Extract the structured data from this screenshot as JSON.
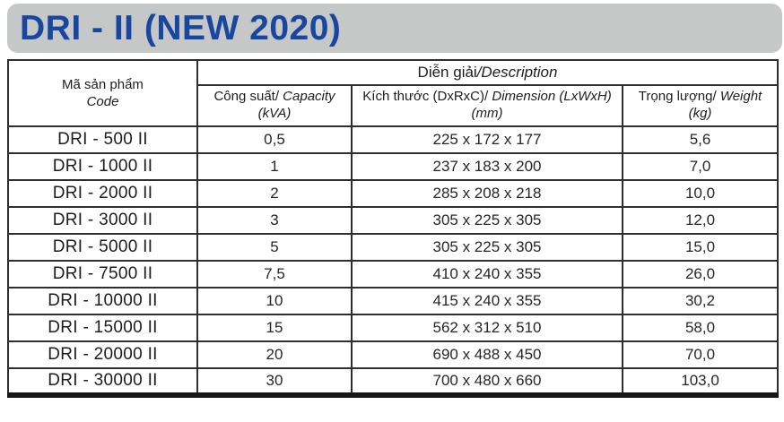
{
  "title": "DRI - II (NEW 2020)",
  "colors": {
    "title_blue": "#17479e",
    "banner_gray": "#c6c7c7",
    "border_dark": "#2e2e2e"
  },
  "table": {
    "header": {
      "code_vi": "Mã sản phẩm",
      "code_en": "Code",
      "description_vi": "Diễn giải",
      "description_en": "/Description",
      "capacity_vi": "Công suất/",
      "capacity_en": "Capacity",
      "capacity_unit": "(kVA)",
      "dimension_vi": "Kích thước (DxRxC)/",
      "dimension_en": "Dimension (LxWxH)",
      "dimension_unit": "(mm)",
      "weight_vi": "Trọng lượng/",
      "weight_en": "Weight (kg)"
    },
    "rows": [
      {
        "code": "DRI - 500 II",
        "capacity": "0,5",
        "dimension": "225 x 172 x 177",
        "weight": "5,6"
      },
      {
        "code": "DRI - 1000 II",
        "capacity": "1",
        "dimension": "237 x 183 x 200",
        "weight": "7,0"
      },
      {
        "code": "DRI - 2000 II",
        "capacity": "2",
        "dimension": "285 x 208 x 218",
        "weight": "10,0"
      },
      {
        "code": "DRI - 3000 II",
        "capacity": "3",
        "dimension": "305 x 225 x 305",
        "weight": "12,0"
      },
      {
        "code": "DRI - 5000 II",
        "capacity": "5",
        "dimension": "305 x 225 x 305",
        "weight": "15,0"
      },
      {
        "code": "DRI - 7500 II",
        "capacity": "7,5",
        "dimension": "410 x 240 x 355",
        "weight": "26,0"
      },
      {
        "code": "DRI - 10000 II",
        "capacity": "10",
        "dimension": "415 x 240 x 355",
        "weight": "30,2"
      },
      {
        "code": "DRI - 15000 II",
        "capacity": "15",
        "dimension": "562 x 312 x 510",
        "weight": "58,0"
      },
      {
        "code": "DRI - 20000 II",
        "capacity": "20",
        "dimension": "690 x 488 x 450",
        "weight": "70,0"
      },
      {
        "code": "DRI - 30000 II",
        "capacity": "30",
        "dimension": "700 x 480 x 660",
        "weight": "103,0"
      }
    ]
  }
}
